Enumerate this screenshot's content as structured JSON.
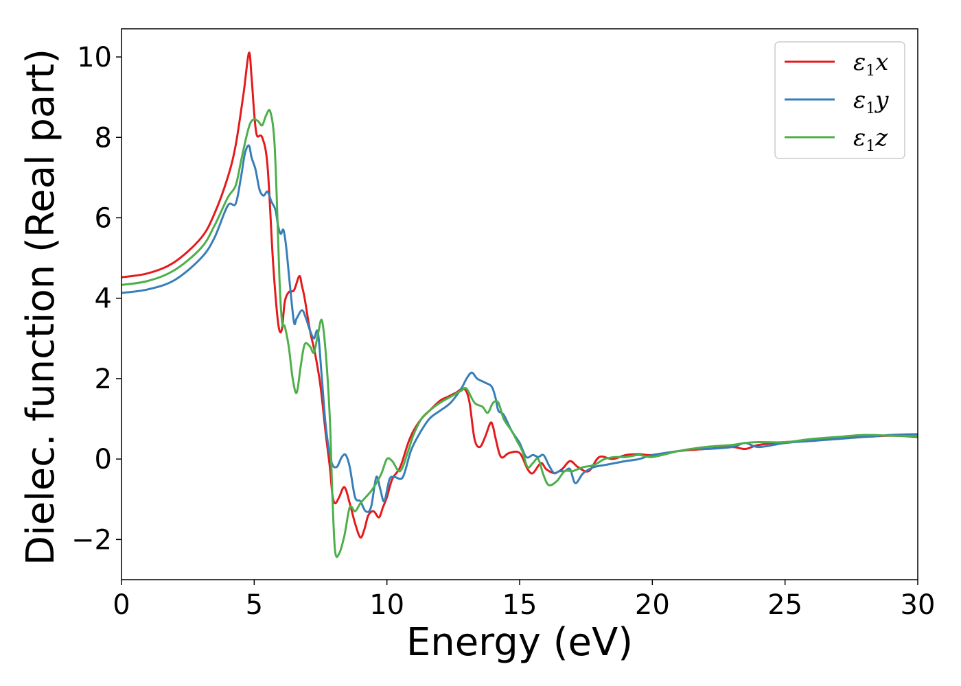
{
  "chart_data": {
    "type": "line",
    "title": "",
    "xlabel": "Energy (eV)",
    "ylabel": "Dielec. function (Real part)",
    "xlim": [
      0,
      30
    ],
    "ylim": [
      -3,
      10.7
    ],
    "xticks": [
      0,
      5,
      10,
      15,
      20,
      25,
      30
    ],
    "yticks": [
      -2,
      0,
      2,
      4,
      6,
      8,
      10
    ],
    "ytick_labels": [
      "−2",
      "0",
      "2",
      "4",
      "6",
      "8",
      "10"
    ],
    "grid": false,
    "legend_position": "top-right",
    "series": [
      {
        "name": "ε1x",
        "legend_base": "ε",
        "legend_sub": "1",
        "legend_suffix": "x",
        "color": "#e41a1c",
        "x": [
          0,
          1,
          2,
          3,
          3.5,
          4,
          4.3,
          4.6,
          4.8,
          4.9,
          5.0,
          5.1,
          5.3,
          5.5,
          5.7,
          5.85,
          5.95,
          6.05,
          6.15,
          6.3,
          6.5,
          6.7,
          6.8,
          6.9,
          7.1,
          7.3,
          7.5,
          7.7,
          7.85,
          7.95,
          8.05,
          8.2,
          8.4,
          8.6,
          8.8,
          9.0,
          9.15,
          9.3,
          9.5,
          9.7,
          9.85,
          10.0,
          10.2,
          10.5,
          10.8,
          11.0,
          11.3,
          11.6,
          12.0,
          12.3,
          12.6,
          12.9,
          13.1,
          13.3,
          13.5,
          13.7,
          13.9,
          14.0,
          14.1,
          14.3,
          14.6,
          15.0,
          15.3,
          15.5,
          15.8,
          16.0,
          16.3,
          16.6,
          16.9,
          17.2,
          17.6,
          18.0,
          18.5,
          19.0,
          19.5,
          20.0,
          21.0,
          22.0,
          23.0,
          23.5,
          24.0,
          25.0,
          26.0,
          27.0,
          28.0,
          29.0,
          30.0
        ],
        "y": [
          4.52,
          4.62,
          4.9,
          5.5,
          6.1,
          7.0,
          7.8,
          9.1,
          10.1,
          9.5,
          8.6,
          8.05,
          8.0,
          7.3,
          5.0,
          3.7,
          3.2,
          3.25,
          3.9,
          4.15,
          4.2,
          4.55,
          4.3,
          4.0,
          3.2,
          2.6,
          1.8,
          0.6,
          -0.2,
          -0.9,
          -1.1,
          -0.95,
          -0.7,
          -1.1,
          -1.6,
          -1.95,
          -1.75,
          -1.4,
          -1.3,
          -1.45,
          -1.2,
          -0.95,
          -0.5,
          -0.2,
          0.4,
          0.7,
          1.0,
          1.2,
          1.45,
          1.55,
          1.65,
          1.75,
          1.45,
          0.5,
          0.3,
          0.55,
          0.9,
          0.8,
          0.5,
          0.05,
          0.15,
          0.15,
          -0.25,
          -0.35,
          -0.1,
          -0.25,
          -0.35,
          -0.25,
          -0.05,
          -0.2,
          -0.3,
          0.05,
          0.0,
          0.1,
          0.12,
          0.1,
          0.2,
          0.25,
          0.3,
          0.25,
          0.35,
          0.42,
          0.45,
          0.52,
          0.55,
          0.58,
          0.55
        ]
      },
      {
        "name": "ε1y",
        "legend_base": "ε",
        "legend_sub": "1",
        "legend_suffix": "y",
        "color": "#377eb8",
        "x": [
          0,
          1,
          2,
          3,
          3.5,
          4,
          4.3,
          4.5,
          4.65,
          4.8,
          4.9,
          5.05,
          5.2,
          5.35,
          5.5,
          5.65,
          5.8,
          5.9,
          6.0,
          6.1,
          6.2,
          6.35,
          6.5,
          6.6,
          6.8,
          6.95,
          7.1,
          7.25,
          7.4,
          7.55,
          7.7,
          7.9,
          8.1,
          8.3,
          8.45,
          8.6,
          8.8,
          9.0,
          9.2,
          9.4,
          9.6,
          9.75,
          9.9,
          10.1,
          10.3,
          10.6,
          10.9,
          11.2,
          11.6,
          12.0,
          12.4,
          12.8,
          13.0,
          13.2,
          13.4,
          13.7,
          13.95,
          14.1,
          14.2,
          14.4,
          14.7,
          15.0,
          15.25,
          15.5,
          15.7,
          15.9,
          16.1,
          16.3,
          16.5,
          16.7,
          16.9,
          17.1,
          17.4,
          17.8,
          18.2,
          18.6,
          19.0,
          19.5,
          20.0,
          21.0,
          21.5,
          22.0,
          23.0,
          23.5,
          24.0,
          25.0,
          26.0,
          27.0,
          28.0,
          29.0,
          30.0
        ],
        "y": [
          4.13,
          4.22,
          4.45,
          5.0,
          5.5,
          6.3,
          6.35,
          7.0,
          7.6,
          7.8,
          7.5,
          7.2,
          6.7,
          6.55,
          6.65,
          6.4,
          6.2,
          5.8,
          5.6,
          5.7,
          5.3,
          4.3,
          3.4,
          3.5,
          3.7,
          3.5,
          3.2,
          3.0,
          3.15,
          2.0,
          0.8,
          -0.05,
          -0.2,
          0.05,
          0.1,
          -0.2,
          -0.95,
          -1.05,
          -1.3,
          -1.2,
          -0.45,
          -0.75,
          -1.05,
          -0.5,
          -0.45,
          -0.45,
          0.2,
          0.6,
          1.0,
          1.2,
          1.4,
          1.75,
          2.0,
          2.15,
          2.0,
          1.9,
          1.8,
          1.5,
          1.2,
          1.1,
          0.7,
          0.4,
          0.05,
          0.1,
          0.05,
          0.1,
          -0.15,
          -0.35,
          -0.3,
          -0.3,
          -0.25,
          -0.6,
          -0.35,
          -0.2,
          -0.15,
          -0.1,
          -0.05,
          0.0,
          0.1,
          0.2,
          0.25,
          0.25,
          0.3,
          0.4,
          0.3,
          0.4,
          0.45,
          0.5,
          0.55,
          0.6,
          0.62
        ]
      },
      {
        "name": "ε1z",
        "legend_base": "ε",
        "legend_sub": "1",
        "legend_suffix": "z",
        "color": "#4daf4a",
        "x": [
          0,
          1,
          2,
          3,
          3.5,
          4,
          4.3,
          4.5,
          4.7,
          4.85,
          5.0,
          5.15,
          5.3,
          5.45,
          5.6,
          5.75,
          5.85,
          5.95,
          6.05,
          6.15,
          6.3,
          6.45,
          6.6,
          6.75,
          6.9,
          7.1,
          7.25,
          7.4,
          7.55,
          7.7,
          7.85,
          7.95,
          8.05,
          8.2,
          8.4,
          8.6,
          8.8,
          9.0,
          9.2,
          9.4,
          9.6,
          9.8,
          10.0,
          10.2,
          10.5,
          10.8,
          11.0,
          11.3,
          11.6,
          12.0,
          12.4,
          12.8,
          13.0,
          13.3,
          13.6,
          13.8,
          14.0,
          14.2,
          14.4,
          14.7,
          14.9,
          15.1,
          15.3,
          15.5,
          15.7,
          15.9,
          16.1,
          16.4,
          16.7,
          17.0,
          17.4,
          17.8,
          18.2,
          18.6,
          19.0,
          19.5,
          20.0,
          21.0,
          22.0,
          23.0,
          23.5,
          24.0,
          25.0,
          26.0,
          27.0,
          28.0,
          29.0,
          30.0
        ],
        "y": [
          4.33,
          4.43,
          4.7,
          5.25,
          5.8,
          6.5,
          6.8,
          7.4,
          8.0,
          8.35,
          8.45,
          8.4,
          8.3,
          8.55,
          8.65,
          8.0,
          6.5,
          4.5,
          3.4,
          3.3,
          2.8,
          2.0,
          1.65,
          2.3,
          2.85,
          2.8,
          2.65,
          3.1,
          3.45,
          2.6,
          1.0,
          -1.0,
          -2.3,
          -2.35,
          -1.9,
          -1.2,
          -1.3,
          -1.1,
          -0.95,
          -0.8,
          -0.6,
          -0.35,
          0.0,
          -0.05,
          -0.3,
          0.2,
          0.6,
          1.0,
          1.2,
          1.4,
          1.55,
          1.7,
          1.75,
          1.4,
          1.3,
          1.15,
          1.4,
          1.4,
          1.0,
          0.7,
          0.45,
          0.2,
          -0.2,
          -0.1,
          0.0,
          -0.4,
          -0.65,
          -0.55,
          -0.3,
          -0.3,
          -0.2,
          -0.15,
          0.0,
          0.05,
          0.05,
          0.1,
          0.05,
          0.2,
          0.3,
          0.35,
          0.4,
          0.42,
          0.42,
          0.5,
          0.55,
          0.6,
          0.58,
          0.57
        ]
      }
    ]
  }
}
